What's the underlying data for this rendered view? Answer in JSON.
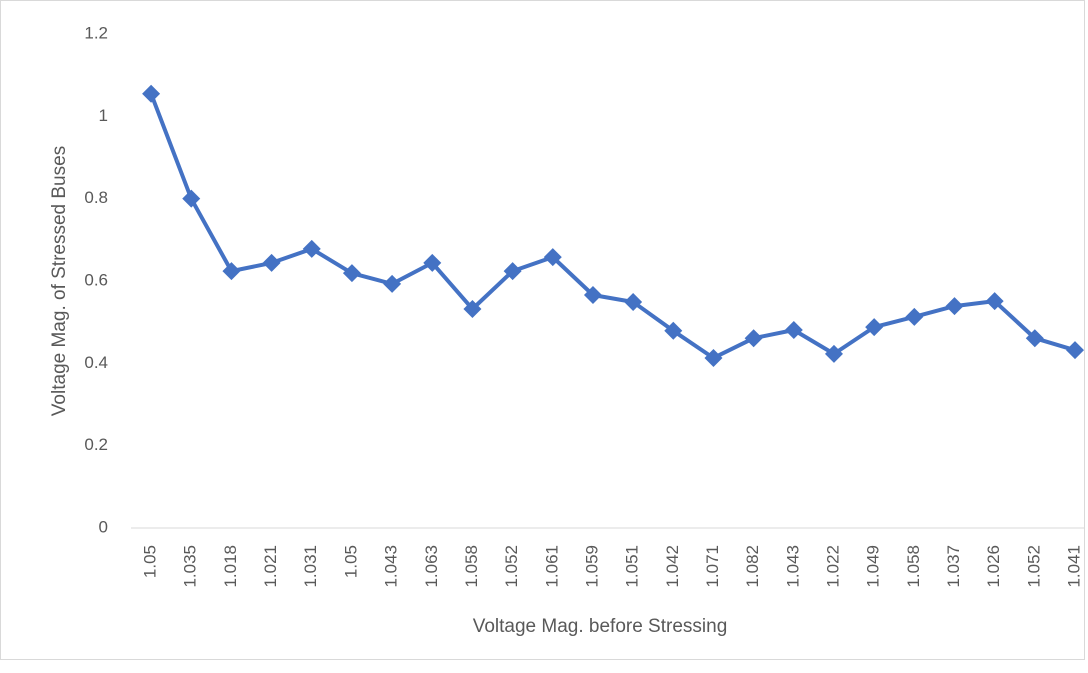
{
  "chart_data": {
    "type": "line",
    "x_label": "Voltage Mag. before Stressing",
    "y_label": "Voltage Mag. of Stressed Buses",
    "categories": [
      "1.05",
      "1.035",
      "1.018",
      "1.021",
      "1.031",
      "1.05",
      "1.043",
      "1.063",
      "1.058",
      "1.052",
      "1.061",
      "1.059",
      "1.051",
      "1.042",
      "1.071",
      "1.082",
      "1.043",
      "1.022",
      "1.049",
      "1.058",
      "1.037",
      "1.026",
      "1.052",
      "1.041"
    ],
    "series": [
      {
        "name": "Voltage Mag. of Stressed Buses",
        "color": "#4472c4",
        "values": [
          1.055,
          0.8,
          0.624,
          0.644,
          0.678,
          0.619,
          0.593,
          0.644,
          0.532,
          0.624,
          0.658,
          0.566,
          0.549,
          0.479,
          0.413,
          0.461,
          0.481,
          0.423,
          0.488,
          0.513,
          0.539,
          0.551,
          0.461,
          0.432
        ]
      }
    ],
    "ylim": [
      0,
      1.2
    ],
    "yticks": [
      0,
      0.2,
      0.4,
      0.6,
      0.8,
      1,
      1.2
    ],
    "grid": false
  }
}
